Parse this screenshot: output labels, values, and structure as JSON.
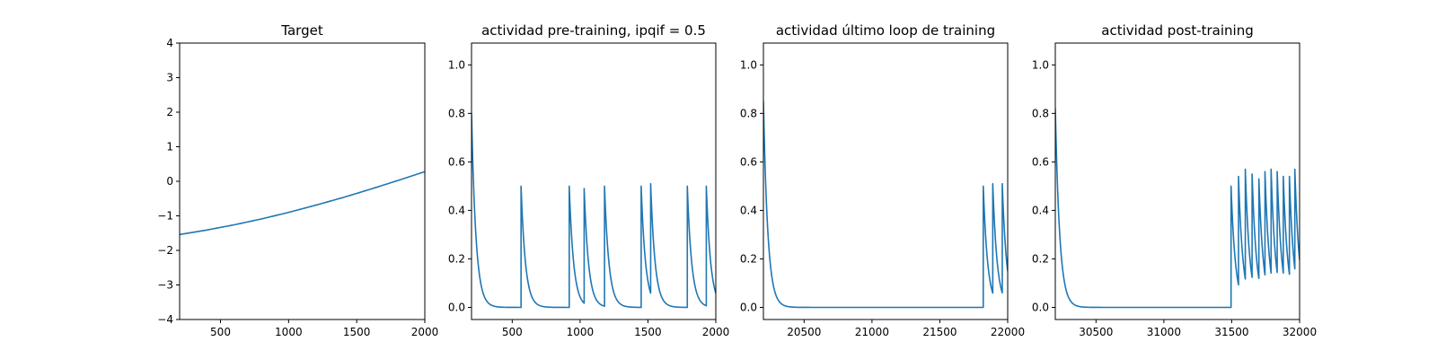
{
  "colors": {
    "series": "#1f77b4",
    "axes": "#000000",
    "background": "#ffffff"
  },
  "chart_data": [
    {
      "type": "line",
      "title": "Target",
      "xlim": [
        200,
        2000
      ],
      "ylim": [
        -4,
        4
      ],
      "xticks": [
        500,
        1000,
        1500,
        2000
      ],
      "yticks": [
        -4,
        -3,
        -2,
        -1,
        0,
        1,
        2,
        3,
        4
      ],
      "xlabel": "",
      "ylabel": "",
      "series": [
        {
          "x": [
            200,
            400,
            600,
            800,
            1000,
            1200,
            1400,
            1600,
            1800,
            2000
          ],
          "y": [
            -1.54,
            -1.41,
            -1.26,
            -1.09,
            -0.9,
            -0.69,
            -0.47,
            -0.23,
            0.02,
            0.28
          ]
        }
      ]
    },
    {
      "type": "line",
      "title": "actividad pre-training, ipqif = 0.5",
      "xlim": [
        200,
        2000
      ],
      "ylim": [
        -0.05,
        1.09
      ],
      "xticks": [
        500,
        1000,
        1500,
        2000
      ],
      "yticks": [
        0.0,
        0.2,
        0.4,
        0.6,
        0.8,
        1.0
      ],
      "xlabel": "",
      "ylabel": "",
      "baseline": 0.0,
      "start_value": 0.8,
      "spikes": [
        {
          "x": 565,
          "peak": 0.5
        },
        {
          "x": 920,
          "peak": 0.5
        },
        {
          "x": 1030,
          "peak": 0.49
        },
        {
          "x": 1180,
          "peak": 0.5
        },
        {
          "x": 1450,
          "peak": 0.5
        },
        {
          "x": 1520,
          "peak": 0.51
        },
        {
          "x": 1790,
          "peak": 0.5
        },
        {
          "x": 1930,
          "peak": 0.5
        }
      ]
    },
    {
      "type": "line",
      "title": "actividad último loop de training",
      "xlim": [
        20200,
        22000
      ],
      "ylim": [
        -0.05,
        1.09
      ],
      "xticks": [
        20500,
        21000,
        21500,
        22000
      ],
      "yticks": [
        0.0,
        0.2,
        0.4,
        0.6,
        0.8,
        1.0
      ],
      "xlabel": "",
      "ylabel": "",
      "baseline": 0.0,
      "start_value": 0.85,
      "spikes": [
        {
          "x": 21820,
          "peak": 0.5
        },
        {
          "x": 21890,
          "peak": 0.51
        },
        {
          "x": 21960,
          "peak": 0.51
        }
      ]
    },
    {
      "type": "line",
      "title": "actividad post-training",
      "xlim": [
        30200,
        32000
      ],
      "ylim": [
        -0.05,
        1.09
      ],
      "xticks": [
        30500,
        31000,
        31500,
        32000
      ],
      "yticks": [
        0.0,
        0.2,
        0.4,
        0.6,
        0.8,
        1.0
      ],
      "xlabel": "",
      "ylabel": "",
      "baseline": 0.0,
      "start_value": 0.82,
      "spikes": [
        {
          "x": 31495,
          "peak": 0.5
        },
        {
          "x": 31550,
          "peak": 0.54
        },
        {
          "x": 31600,
          "peak": 0.57
        },
        {
          "x": 31650,
          "peak": 0.55
        },
        {
          "x": 31700,
          "peak": 0.53
        },
        {
          "x": 31745,
          "peak": 0.56
        },
        {
          "x": 31790,
          "peak": 0.57
        },
        {
          "x": 31835,
          "peak": 0.56
        },
        {
          "x": 31880,
          "peak": 0.54
        },
        {
          "x": 31925,
          "peak": 0.54
        },
        {
          "x": 31965,
          "peak": 0.57
        }
      ]
    }
  ]
}
